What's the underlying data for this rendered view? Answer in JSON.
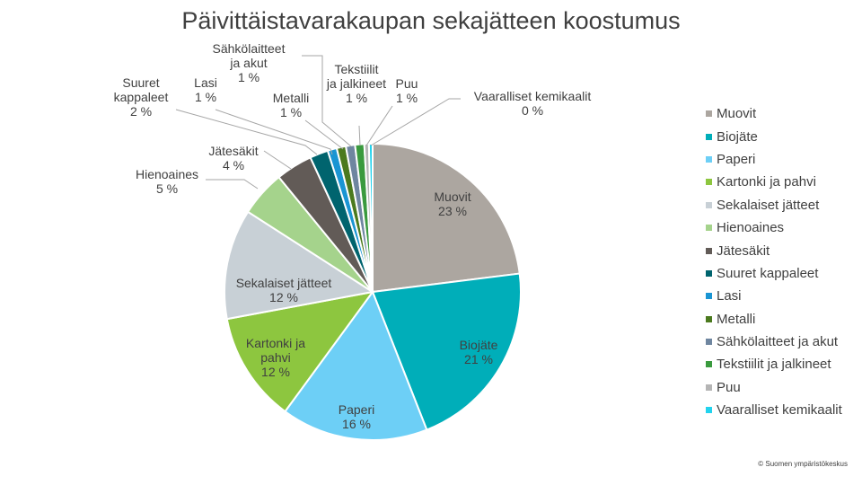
{
  "chart_data": {
    "type": "pie",
    "title": "Päivittäistavarakaupan sekajätteen koostumus",
    "legend_position": "right",
    "slices": [
      {
        "name": "Muovit",
        "value": 23,
        "label": "23 %",
        "color": "#aca6a0"
      },
      {
        "name": "Biojäte",
        "value": 21,
        "label": "21 %",
        "color": "#00aeb9"
      },
      {
        "name": "Paperi",
        "value": 16,
        "label": "16 %",
        "color": "#6dcff6"
      },
      {
        "name": "Kartonki ja pahvi",
        "value": 12,
        "label": "12 %",
        "color": "#8dc63f"
      },
      {
        "name": "Sekalaiset jätteet",
        "value": 12,
        "label": "12 %",
        "color": "#c8d0d6"
      },
      {
        "name": "Hienoaines",
        "value": 5,
        "label": "5 %",
        "color": "#a5d38c"
      },
      {
        "name": "Jätesäkit",
        "value": 4,
        "label": "4 %",
        "color": "#625b57"
      },
      {
        "name": "Suuret kappaleet",
        "value": 2,
        "label": "2 %",
        "color": "#00646e"
      },
      {
        "name": "Lasi",
        "value": 1,
        "label": "1 %",
        "color": "#1a95d3"
      },
      {
        "name": "Metalli",
        "value": 1,
        "label": "1 %",
        "color": "#4b7a1e"
      },
      {
        "name": "Sähkölaitteet ja akut",
        "value": 1,
        "label": "1 %",
        "color": "#6f86a0"
      },
      {
        "name": "Tekstiilit ja jalkineet",
        "value": 1,
        "label": "1 %",
        "color": "#3a9a3e"
      },
      {
        "name": "Puu",
        "value": 0.5,
        "label": "1 %",
        "color": "#b5b5b5"
      },
      {
        "name": "Vaaralliset kemikaalit",
        "value": 0.4,
        "label": "0 %",
        "color": "#22d3ee"
      }
    ]
  },
  "copyright": "© Suomen ympäristökeskus"
}
